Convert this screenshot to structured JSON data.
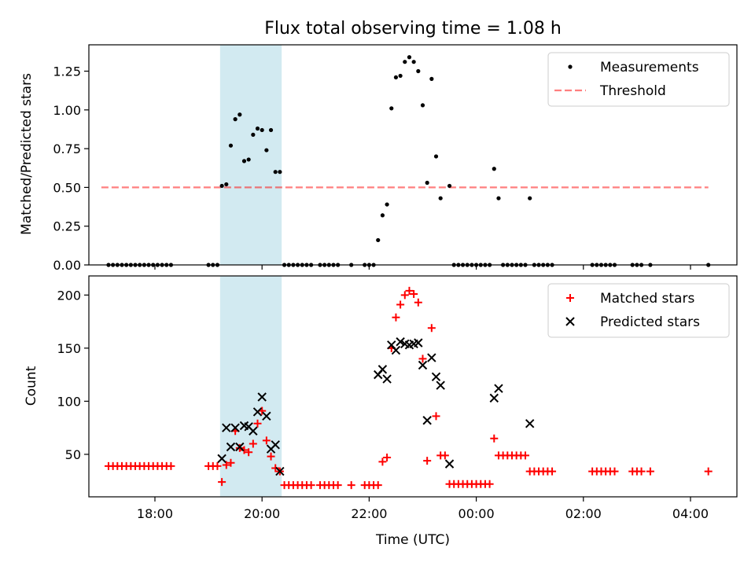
{
  "title": "Flux total observing time = 1.08 h",
  "xlabel": "Time (UTC)",
  "x_ticks": [
    "18:00",
    "20:00",
    "22:00",
    "00:00",
    "02:00",
    "04:00"
  ],
  "shaded_interval": [
    "19:13",
    "20:22"
  ],
  "colors": {
    "shade": "#add8e6",
    "threshold": "#ff0000",
    "measurements": "#000000",
    "matched": "#ff0000",
    "predicted": "#000000"
  },
  "chart_data": [
    {
      "type": "scatter",
      "ylabel": "Matched/Predicted stars",
      "ylim": [
        0,
        1.42
      ],
      "xlim": [
        "16:46",
        "04:52"
      ],
      "y_ticks": [
        "0.00",
        "0.25",
        "0.50",
        "0.75",
        "1.00",
        "1.25"
      ],
      "legend": {
        "position": "top-right",
        "entries": [
          "Measurements",
          "Threshold"
        ]
      },
      "threshold": {
        "y": 0.5,
        "x": [
          "17:00",
          "04:20"
        ],
        "style": "dashed"
      },
      "series": [
        {
          "name": "Measurements",
          "points": [
            [
              "17:08",
              0
            ],
            [
              "17:13",
              0
            ],
            [
              "17:18",
              0
            ],
            [
              "17:23",
              0
            ],
            [
              "17:28",
              0
            ],
            [
              "17:33",
              0
            ],
            [
              "17:38",
              0
            ],
            [
              "17:43",
              0
            ],
            [
              "17:48",
              0
            ],
            [
              "17:53",
              0
            ],
            [
              "17:58",
              0
            ],
            [
              "18:03",
              0
            ],
            [
              "18:08",
              0
            ],
            [
              "18:13",
              0
            ],
            [
              "18:18",
              0
            ],
            [
              "19:00",
              0
            ],
            [
              "19:05",
              0
            ],
            [
              "19:10",
              0
            ],
            [
              "19:15",
              0.51
            ],
            [
              "19:20",
              0.52
            ],
            [
              "19:25",
              0.77
            ],
            [
              "19:30",
              0.94
            ],
            [
              "19:35",
              0.97
            ],
            [
              "19:40",
              0.67
            ],
            [
              "19:45",
              0.68
            ],
            [
              "19:50",
              0.84
            ],
            [
              "19:55",
              0.88
            ],
            [
              "20:00",
              0.87
            ],
            [
              "20:05",
              0.74
            ],
            [
              "20:10",
              0.87
            ],
            [
              "20:15",
              0.6
            ],
            [
              "20:20",
              0.6
            ],
            [
              "20:25",
              0
            ],
            [
              "20:30",
              0
            ],
            [
              "20:35",
              0
            ],
            [
              "20:40",
              0
            ],
            [
              "20:45",
              0
            ],
            [
              "20:50",
              0
            ],
            [
              "20:55",
              0
            ],
            [
              "21:05",
              0
            ],
            [
              "21:10",
              0
            ],
            [
              "21:15",
              0
            ],
            [
              "21:20",
              0
            ],
            [
              "21:25",
              0
            ],
            [
              "21:40",
              0
            ],
            [
              "21:55",
              0
            ],
            [
              "22:00",
              0
            ],
            [
              "22:05",
              0
            ],
            [
              "22:10",
              0.16
            ],
            [
              "22:15",
              0.32
            ],
            [
              "22:20",
              0.39
            ],
            [
              "22:25",
              1.01
            ],
            [
              "22:30",
              1.21
            ],
            [
              "22:35",
              1.22
            ],
            [
              "22:40",
              1.31
            ],
            [
              "22:45",
              1.34
            ],
            [
              "22:50",
              1.31
            ],
            [
              "22:55",
              1.25
            ],
            [
              "23:00",
              1.03
            ],
            [
              "23:05",
              0.53
            ],
            [
              "23:10",
              1.2
            ],
            [
              "23:15",
              0.7
            ],
            [
              "23:20",
              0.43
            ],
            [
              "23:30",
              0.51
            ],
            [
              "23:35",
              0
            ],
            [
              "23:40",
              0
            ],
            [
              "23:45",
              0
            ],
            [
              "23:50",
              0
            ],
            [
              "23:55",
              0
            ],
            [
              "00:00",
              0
            ],
            [
              "00:05",
              0
            ],
            [
              "00:10",
              0
            ],
            [
              "00:15",
              0
            ],
            [
              "00:20",
              0.62
            ],
            [
              "00:25",
              0.43
            ],
            [
              "00:30",
              0
            ],
            [
              "00:35",
              0
            ],
            [
              "00:40",
              0
            ],
            [
              "00:45",
              0
            ],
            [
              "00:50",
              0
            ],
            [
              "00:55",
              0
            ],
            [
              "01:00",
              0.43
            ],
            [
              "01:05",
              0
            ],
            [
              "01:10",
              0
            ],
            [
              "01:15",
              0
            ],
            [
              "01:20",
              0
            ],
            [
              "01:25",
              0
            ],
            [
              "02:10",
              0
            ],
            [
              "02:15",
              0
            ],
            [
              "02:20",
              0
            ],
            [
              "02:25",
              0
            ],
            [
              "02:30",
              0
            ],
            [
              "02:35",
              0
            ],
            [
              "02:55",
              0
            ],
            [
              "03:00",
              0
            ],
            [
              "03:05",
              0
            ],
            [
              "03:15",
              0
            ],
            [
              "04:20",
              0
            ]
          ]
        }
      ]
    },
    {
      "type": "scatter",
      "ylabel": "Count",
      "ylim": [
        10,
        218
      ],
      "xlim": [
        "16:46",
        "04:52"
      ],
      "y_ticks": [
        "50",
        "100",
        "150",
        "200"
      ],
      "legend": {
        "position": "top-right",
        "entries": [
          "Matched stars",
          "Predicted stars"
        ]
      },
      "series": [
        {
          "name": "Matched stars",
          "marker": "plus",
          "points": [
            [
              "17:08",
              39
            ],
            [
              "17:13",
              39
            ],
            [
              "17:18",
              39
            ],
            [
              "17:23",
              39
            ],
            [
              "17:28",
              39
            ],
            [
              "17:33",
              39
            ],
            [
              "17:38",
              39
            ],
            [
              "17:43",
              39
            ],
            [
              "17:48",
              39
            ],
            [
              "17:53",
              39
            ],
            [
              "17:58",
              39
            ],
            [
              "18:03",
              39
            ],
            [
              "18:08",
              39
            ],
            [
              "18:13",
              39
            ],
            [
              "18:18",
              39
            ],
            [
              "19:00",
              39
            ],
            [
              "19:05",
              39
            ],
            [
              "19:10",
              39
            ],
            [
              "19:15",
              24
            ],
            [
              "19:20",
              40
            ],
            [
              "19:25",
              42
            ],
            [
              "19:30",
              72
            ],
            [
              "19:35",
              56
            ],
            [
              "19:40",
              54
            ],
            [
              "19:45",
              52
            ],
            [
              "19:50",
              60
            ],
            [
              "19:55",
              79
            ],
            [
              "20:00",
              91
            ],
            [
              "20:05",
              63
            ],
            [
              "20:10",
              48
            ],
            [
              "20:15",
              37
            ],
            [
              "20:20",
              34
            ],
            [
              "20:25",
              21
            ],
            [
              "20:30",
              21
            ],
            [
              "20:35",
              21
            ],
            [
              "20:40",
              21
            ],
            [
              "20:45",
              21
            ],
            [
              "20:50",
              21
            ],
            [
              "20:55",
              21
            ],
            [
              "21:05",
              21
            ],
            [
              "21:10",
              21
            ],
            [
              "21:15",
              21
            ],
            [
              "21:20",
              21
            ],
            [
              "21:25",
              21
            ],
            [
              "21:40",
              21
            ],
            [
              "21:55",
              21
            ],
            [
              "22:00",
              21
            ],
            [
              "22:05",
              21
            ],
            [
              "22:10",
              21
            ],
            [
              "22:15",
              43
            ],
            [
              "22:20",
              47
            ],
            [
              "22:25",
              150
            ],
            [
              "22:30",
              179
            ],
            [
              "22:35",
              191
            ],
            [
              "22:40",
              200
            ],
            [
              "22:45",
              204
            ],
            [
              "22:50",
              201
            ],
            [
              "22:55",
              193
            ],
            [
              "23:00",
              140
            ],
            [
              "23:05",
              44
            ],
            [
              "23:10",
              169
            ],
            [
              "23:15",
              86
            ],
            [
              "23:20",
              49
            ],
            [
              "23:25",
              49
            ],
            [
              "23:30",
              22
            ],
            [
              "23:35",
              22
            ],
            [
              "23:40",
              22
            ],
            [
              "23:45",
              22
            ],
            [
              "23:50",
              22
            ],
            [
              "23:55",
              22
            ],
            [
              "00:00",
              22
            ],
            [
              "00:05",
              22
            ],
            [
              "00:10",
              22
            ],
            [
              "00:15",
              22
            ],
            [
              "00:20",
              65
            ],
            [
              "00:25",
              49
            ],
            [
              "00:30",
              49
            ],
            [
              "00:35",
              49
            ],
            [
              "00:40",
              49
            ],
            [
              "00:45",
              49
            ],
            [
              "00:50",
              49
            ],
            [
              "00:55",
              49
            ],
            [
              "01:00",
              34
            ],
            [
              "01:05",
              34
            ],
            [
              "01:10",
              34
            ],
            [
              "01:15",
              34
            ],
            [
              "01:20",
              34
            ],
            [
              "01:25",
              34
            ],
            [
              "02:10",
              34
            ],
            [
              "02:15",
              34
            ],
            [
              "02:20",
              34
            ],
            [
              "02:25",
              34
            ],
            [
              "02:30",
              34
            ],
            [
              "02:35",
              34
            ],
            [
              "02:55",
              34
            ],
            [
              "03:00",
              34
            ],
            [
              "03:05",
              34
            ],
            [
              "03:15",
              34
            ],
            [
              "04:20",
              34
            ]
          ]
        },
        {
          "name": "Predicted stars",
          "marker": "x",
          "points": [
            [
              "19:15",
              46
            ],
            [
              "19:20",
              75
            ],
            [
              "19:25",
              57
            ],
            [
              "19:30",
              75
            ],
            [
              "19:35",
              57
            ],
            [
              "19:40",
              77
            ],
            [
              "19:45",
              76
            ],
            [
              "19:50",
              72
            ],
            [
              "19:55",
              90
            ],
            [
              "20:00",
              104
            ],
            [
              "20:05",
              86
            ],
            [
              "20:10",
              55
            ],
            [
              "20:15",
              59
            ],
            [
              "20:20",
              34
            ],
            [
              "22:10",
              125
            ],
            [
              "22:15",
              130
            ],
            [
              "22:20",
              121
            ],
            [
              "22:25",
              153
            ],
            [
              "22:30",
              148
            ],
            [
              "22:35",
              156
            ],
            [
              "22:40",
              154
            ],
            [
              "22:45",
              153
            ],
            [
              "22:50",
              154
            ],
            [
              "22:55",
              155
            ],
            [
              "23:00",
              134
            ],
            [
              "23:05",
              82
            ],
            [
              "23:10",
              141
            ],
            [
              "23:15",
              123
            ],
            [
              "23:20",
              115
            ],
            [
              "23:30",
              41
            ],
            [
              "00:20",
              103
            ],
            [
              "00:25",
              112
            ],
            [
              "01:00",
              79
            ]
          ]
        }
      ]
    }
  ]
}
